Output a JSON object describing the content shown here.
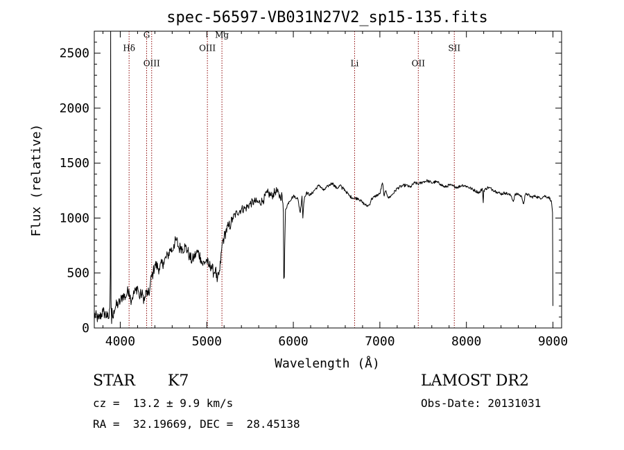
{
  "chart_data": {
    "type": "line",
    "title": "spec-56597-VB031N27V2_sp15-135.fits",
    "xlabel": "Wavelength (Å)",
    "ylabel": "Flux (relative)",
    "xlim": [
      3700,
      9100
    ],
    "ylim": [
      0,
      2700
    ],
    "xticks": [
      4000,
      5000,
      6000,
      7000,
      8000,
      9000
    ],
    "yticks": [
      0,
      500,
      1000,
      1500,
      2000,
      2500
    ],
    "grid": false,
    "line_color": "#000000",
    "marker_color": "#8b0000",
    "lines": [
      {
        "label": "Hδ",
        "x": 4102,
        "label_y": 2520
      },
      {
        "label": "G",
        "x": 4305,
        "label_y": 2640
      },
      {
        "label": "OIII",
        "x": 4363,
        "label_y": 2380
      },
      {
        "label": "OIII",
        "x": 5007,
        "label_y": 2520
      },
      {
        "label": "Mg",
        "x": 5175,
        "label_y": 2640
      },
      {
        "label": "Li",
        "x": 6708,
        "label_y": 2380
      },
      {
        "label": "OII",
        "x": 7444,
        "label_y": 2380
      },
      {
        "label": "SII",
        "x": 7860,
        "label_y": 2520
      }
    ],
    "series": [
      {
        "x": [
          3700,
          3750,
          3800,
          3850,
          3870,
          3880,
          3885,
          3889,
          3893,
          3900,
          3905,
          3910,
          3915,
          3925,
          3950,
          3980,
          4000,
          4030,
          4060,
          4080,
          4100,
          4120,
          4150,
          4180,
          4200,
          4220,
          4240,
          4260,
          4280,
          4300,
          4320,
          4340,
          4360,
          4380,
          4400,
          4450,
          4500,
          4550,
          4580,
          4600,
          4620,
          4650,
          4680,
          4700,
          4720,
          4750,
          4780,
          4800,
          4830,
          4850,
          4880,
          4900,
          4930,
          4950,
          4980,
          5000,
          5020,
          5050,
          5080,
          5100,
          5120,
          5150,
          5170,
          5185,
          5200,
          5220,
          5250,
          5280,
          5300,
          5350,
          5400,
          5450,
          5500,
          5550,
          5600,
          5650,
          5700,
          5750,
          5800,
          5850,
          5870,
          5885,
          5890,
          5893,
          5896,
          5900,
          5910,
          5950,
          6000,
          6050,
          6080,
          6100,
          6110,
          6120,
          6130,
          6150,
          6200,
          6250,
          6300,
          6350,
          6400,
          6450,
          6500,
          6550,
          6563,
          6570,
          6600,
          6650,
          6700,
          6750,
          6800,
          6850,
          6880,
          6900,
          6950,
          7000,
          7030,
          7050,
          7070,
          7100,
          7150,
          7200,
          7250,
          7300,
          7350,
          7400,
          7450,
          7500,
          7550,
          7600,
          7650,
          7700,
          7750,
          7800,
          7850,
          7900,
          7950,
          8000,
          8050,
          8100,
          8150,
          8183,
          8195,
          8200,
          8250,
          8300,
          8350,
          8400,
          8450,
          8500,
          8520,
          8542,
          8560,
          8600,
          8640,
          8662,
          8680,
          8700,
          8750,
          8800,
          8850,
          8900,
          8950,
          8980,
          8995,
          9000
        ],
        "y": [
          120,
          80,
          150,
          100,
          90,
          180,
          520,
          2700,
          260,
          40,
          180,
          120,
          90,
          160,
          200,
          220,
          240,
          300,
          280,
          320,
          350,
          260,
          300,
          340,
          380,
          280,
          310,
          300,
          250,
          330,
          300,
          340,
          470,
          500,
          580,
          540,
          600,
          660,
          720,
          700,
          760,
          800,
          720,
          740,
          720,
          740,
          700,
          650,
          610,
          640,
          680,
          690,
          640,
          580,
          600,
          620,
          560,
          570,
          500,
          540,
          420,
          520,
          700,
          800,
          820,
          880,
          920,
          950,
          1000,
          1050,
          1080,
          1090,
          1130,
          1150,
          1140,
          1160,
          1230,
          1200,
          1250,
          1190,
          1210,
          1050,
          450,
          480,
          460,
          720,
          1080,
          1150,
          1200,
          1180,
          1050,
          1200,
          1000,
          1130,
          1190,
          1230,
          1210,
          1260,
          1300,
          1250,
          1290,
          1320,
          1270,
          1300,
          1260,
          1280,
          1250,
          1200,
          1180,
          1180,
          1140,
          1110,
          1120,
          1170,
          1200,
          1220,
          1320,
          1200,
          1250,
          1180,
          1220,
          1270,
          1290,
          1300,
          1280,
          1320,
          1310,
          1330,
          1340,
          1320,
          1330,
          1310,
          1280,
          1300,
          1290,
          1280,
          1300,
          1290,
          1270,
          1250,
          1230,
          1270,
          1140,
          1250,
          1280,
          1260,
          1240,
          1220,
          1230,
          1210,
          1200,
          1150,
          1210,
          1220,
          1190,
          1130,
          1210,
          1220,
          1190,
          1200,
          1180,
          1200,
          1190,
          1160,
          1050,
          200
        ]
      }
    ]
  },
  "info": {
    "object_class": "STAR",
    "subclass": "K7",
    "survey": "LAMOST DR2",
    "redshift": "cz =  13.2 ± 9.9 km/s",
    "obs_date": "Obs-Date: 20131031",
    "coords": "RA =  32.19669, DEC =  28.45138"
  }
}
